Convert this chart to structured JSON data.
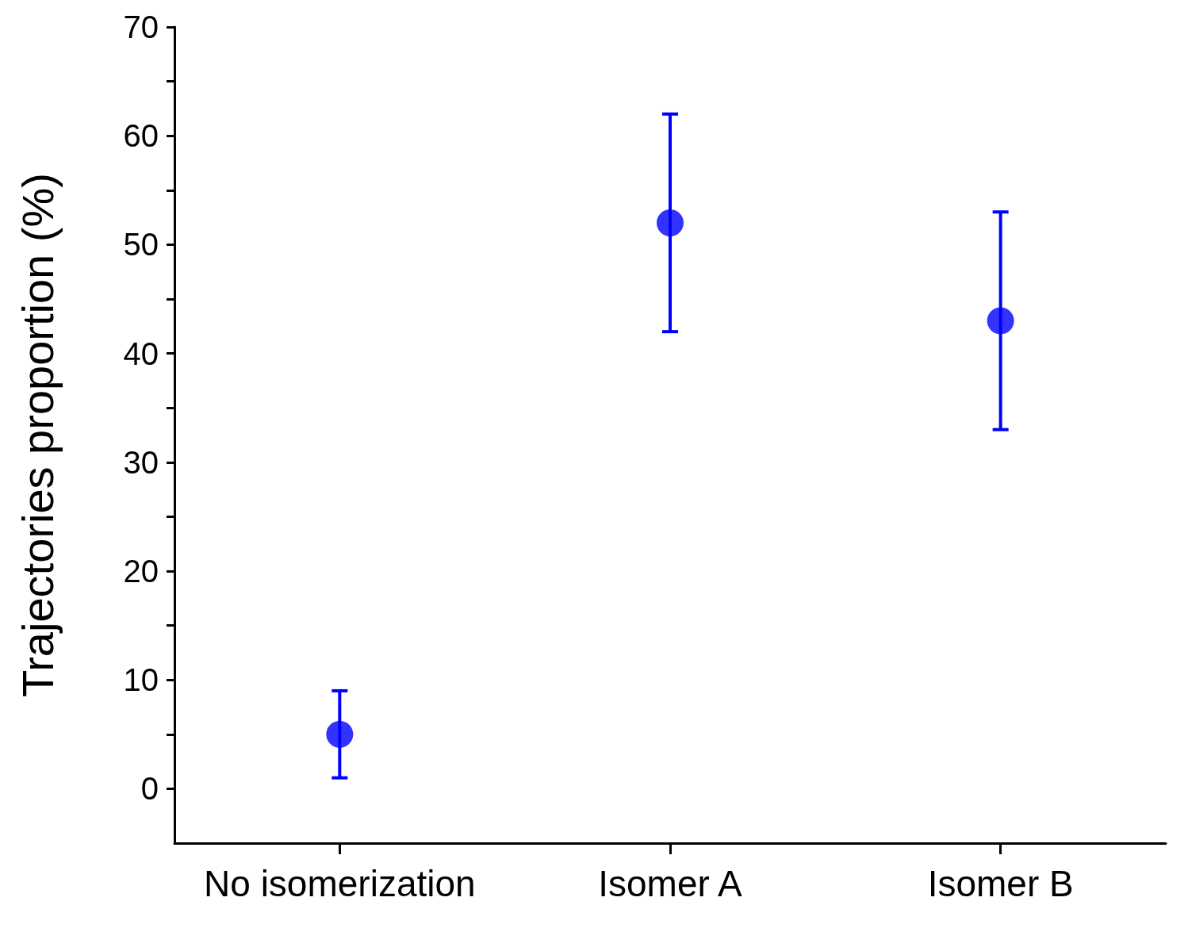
{
  "chart_data": {
    "type": "scatter",
    "ylabel": "Trajectories proportion (%)",
    "categories": [
      "No isomerization",
      "Isomer A",
      "Isomer B"
    ],
    "series": [
      {
        "color": "#0000ff",
        "values": [
          5,
          52,
          43
        ],
        "errors": [
          4,
          10,
          10
        ]
      }
    ],
    "marker": "circle",
    "ylim": [
      -5,
      70
    ],
    "yticks": [
      0,
      {
        "value": 5,
        "label": null
      },
      10,
      {
        "value": 15,
        "label": null
      },
      20,
      {
        "value": 25,
        "label": null
      },
      30,
      {
        "value": 35,
        "label": null
      },
      40,
      {
        "value": 45,
        "label": null
      },
      50,
      {
        "value": 55,
        "label": null
      },
      60,
      {
        "value": 65,
        "label": null
      },
      70
    ]
  }
}
